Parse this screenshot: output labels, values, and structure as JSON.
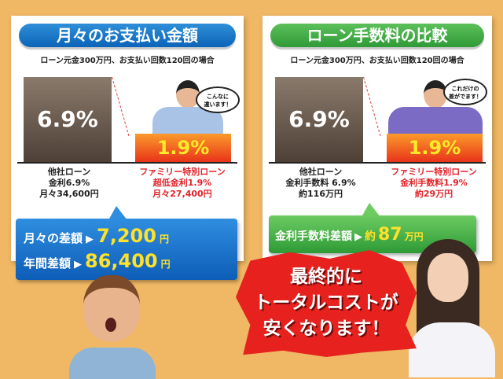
{
  "left_panel": {
    "title": "月々のお支払い金額",
    "subtitle": "ローン元金300万円、お支払い回数120回の場合",
    "bar_other": "6.9%",
    "bar_family": "1.9%",
    "bubble": "こんなに\n違います！",
    "caption_other": [
      "他社ローン",
      "金利6.9%",
      "月々34,600円"
    ],
    "caption_family": [
      "ファミリー特別ローン",
      "超低金利1.9%",
      "月々27,400円"
    ],
    "summary": {
      "monthly_label": "月々の差額",
      "monthly_value": "7,200",
      "monthly_unit": "円",
      "yearly_label": "年間差額",
      "yearly_value": "86,400",
      "yearly_unit": "円",
      "arrow": "▶"
    }
  },
  "right_panel": {
    "title": "ローン手数料の比較",
    "subtitle": "ローン元金300万円、お支払い回数120回の場合",
    "bar_other": "6.9%",
    "bar_family": "1.9%",
    "bubble": "これだけの\n差がでます！",
    "caption_other": [
      "他社ローン",
      "金利手数料 6.9%",
      "約116万円"
    ],
    "caption_family": [
      "ファミリー特別ローン",
      "金利手数料1.9%",
      "約29万円"
    ],
    "summary": {
      "label": "金利手数料差額",
      "arrow": "▶",
      "prefix": "約",
      "value": "87",
      "unit": "万円"
    }
  },
  "burst": [
    "最終的に",
    "トータルコストが",
    "安くなります！"
  ],
  "colors": {
    "background": "#f0b864",
    "blue": "#0c64b8",
    "green": "#2f9a37",
    "red": "#e6211e",
    "accent_yellow": "#ffe12a"
  }
}
